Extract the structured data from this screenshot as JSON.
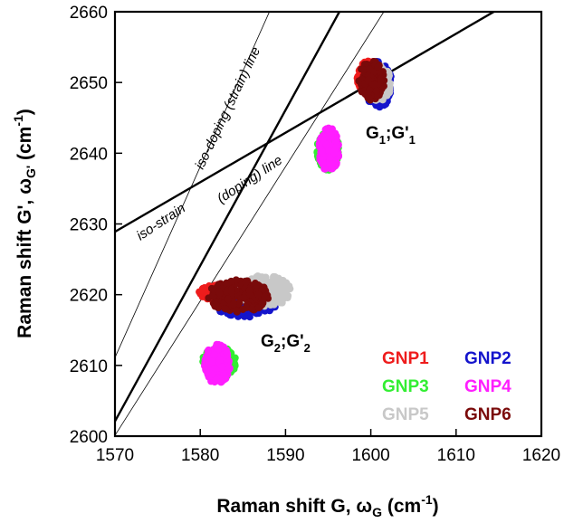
{
  "chart_data": {
    "type": "scatter",
    "xlabel": "Raman shift G, ω",
    "xlabel_sub": "G",
    "xlabel_unit_pre": " (cm",
    "xlabel_unit_sup": "-1",
    "xlabel_unit_post": ")",
    "ylabel": "Raman shift G', ω",
    "ylabel_sub": "G'",
    "ylabel_unit_pre": " (cm",
    "ylabel_unit_sup": "-1",
    "ylabel_unit_post": ")",
    "xlim": [
      1570,
      1620
    ],
    "ylim": [
      2600,
      2660
    ],
    "x_ticks": [
      1570,
      1580,
      1590,
      1600,
      1610,
      1620
    ],
    "y_ticks": [
      2600,
      2610,
      2620,
      2630,
      2640,
      2650,
      2660
    ],
    "grid": false,
    "legend_placement": "bottom-right",
    "series": [
      {
        "name": "GNP1",
        "color": "#ee1c1c",
        "clusters": [
          {
            "cx": 1583.0,
            "cy": 2620.3,
            "rx": 3.2,
            "ry": 1.2
          },
          {
            "cx": 1600.0,
            "cy": 2650.6,
            "rx": 1.6,
            "ry": 2.6
          }
        ]
      },
      {
        "name": "GNP2",
        "color": "#1414cc",
        "clusters": [
          {
            "cx": 1585.3,
            "cy": 2618.6,
            "rx": 3.6,
            "ry": 1.8
          },
          {
            "cx": 1600.9,
            "cy": 2649.7,
            "rx": 1.6,
            "ry": 3.3
          }
        ]
      },
      {
        "name": "GNP3",
        "color": "#33ee33",
        "clusters": [
          {
            "cx": 1582.2,
            "cy": 2610.4,
            "rx": 2.0,
            "ry": 2.2
          },
          {
            "cx": 1595.0,
            "cy": 2640.4,
            "rx": 1.3,
            "ry": 2.8
          }
        ]
      },
      {
        "name": "GNP4",
        "color": "#ff1eff",
        "clusters": [
          {
            "cx": 1582.0,
            "cy": 2610.2,
            "rx": 1.5,
            "ry": 2.8
          },
          {
            "cx": 1595.1,
            "cy": 2640.5,
            "rx": 1.2,
            "ry": 3.1
          }
        ]
      },
      {
        "name": "GNP5",
        "color": "#c8c8c8",
        "clusters": [
          {
            "cx": 1587.5,
            "cy": 2620.5,
            "rx": 3.2,
            "ry": 2.2
          },
          {
            "cx": 1600.9,
            "cy": 2649.9,
            "rx": 1.5,
            "ry": 2.5
          }
        ]
      },
      {
        "name": "GNP6",
        "color": "#7a0a0a",
        "clusters": [
          {
            "cx": 1584.5,
            "cy": 2619.8,
            "rx": 3.6,
            "ry": 2.3
          },
          {
            "cx": 1600.1,
            "cy": 2650.3,
            "rx": 1.5,
            "ry": 2.8
          }
        ]
      }
    ],
    "reference_lines": [
      {
        "name": "iso-strain (doping) line",
        "slope": 0.7,
        "intercept": 1529.9,
        "style": "thick"
      },
      {
        "name": "iso-doping (strain) line",
        "slope": 2.2,
        "intercept": -851.9,
        "style": "thick"
      },
      {
        "name": "thin-1",
        "slope": 2.7,
        "intercept": -1627.9,
        "style": "thin"
      },
      {
        "name": "thin-2",
        "slope": 1.9,
        "intercept": -382.9,
        "style": "thin"
      }
    ],
    "annotations": {
      "cluster1_main": "G",
      "cluster1_sub1": "1",
      "cluster1_mid": ";G'",
      "cluster1_sub2": "1",
      "cluster2_main": "G",
      "cluster2_sub1": "2",
      "cluster2_mid": ";G'",
      "cluster2_sub2": "2",
      "iso_doping_label": "iso-doping (strain) line",
      "iso_strain_label_a": "iso-strain",
      "iso_strain_label_b": "(doping) line"
    }
  }
}
